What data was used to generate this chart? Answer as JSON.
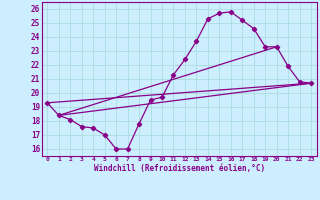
{
  "xlabel": "Windchill (Refroidissement éolien,°C)",
  "ylabel": "",
  "bg_color": "#cceeff",
  "grid_color": "#aadddd",
  "line_color": "#880088",
  "xlim": [
    -0.5,
    23.5
  ],
  "ylim": [
    15.5,
    26.5
  ],
  "xticks": [
    0,
    1,
    2,
    3,
    4,
    5,
    6,
    7,
    8,
    9,
    10,
    11,
    12,
    13,
    14,
    15,
    16,
    17,
    18,
    19,
    20,
    21,
    22,
    23
  ],
  "yticks": [
    16,
    17,
    18,
    19,
    20,
    21,
    22,
    23,
    24,
    25,
    26
  ],
  "curve1_x": [
    0,
    1,
    2,
    3,
    4,
    5,
    6,
    7,
    8,
    9,
    10,
    11,
    12,
    13,
    14,
    15,
    16,
    17,
    18,
    19,
    20,
    21,
    22,
    23
  ],
  "curve1_y": [
    19.3,
    18.4,
    18.1,
    17.6,
    17.5,
    17.0,
    16.0,
    16.0,
    17.8,
    19.5,
    19.7,
    21.3,
    22.4,
    23.7,
    25.3,
    25.7,
    25.8,
    25.2,
    24.6,
    23.3,
    23.3,
    21.9,
    20.8,
    20.7
  ],
  "curve2_x": [
    0,
    23
  ],
  "curve2_y": [
    19.3,
    20.7
  ],
  "curve3_x": [
    1,
    23
  ],
  "curve3_y": [
    18.4,
    20.7
  ],
  "curve4_x": [
    1,
    20
  ],
  "curve4_y": [
    18.4,
    23.3
  ]
}
